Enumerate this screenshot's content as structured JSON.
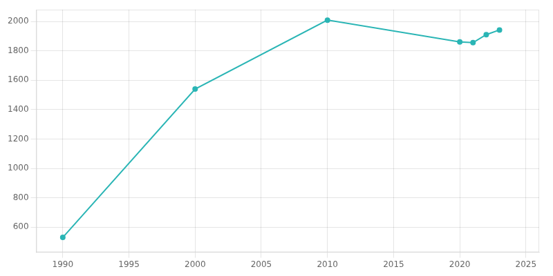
{
  "chart_data": {
    "type": "line",
    "x": [
      1990,
      2000,
      2010,
      2020,
      2021,
      2022,
      2023
    ],
    "values": [
      531,
      1540,
      2009,
      1861,
      1856,
      1910,
      1942
    ],
    "color": "#2ab5b5",
    "marker": "o",
    "xlim": [
      1988,
      2026
    ],
    "ylim": [
      430,
      2080
    ],
    "xticks": [
      1990,
      1995,
      2000,
      2005,
      2010,
      2015,
      2020,
      2025
    ],
    "yticks": [
      600,
      800,
      1000,
      1200,
      1400,
      1600,
      1800,
      2000
    ],
    "grid": true
  }
}
